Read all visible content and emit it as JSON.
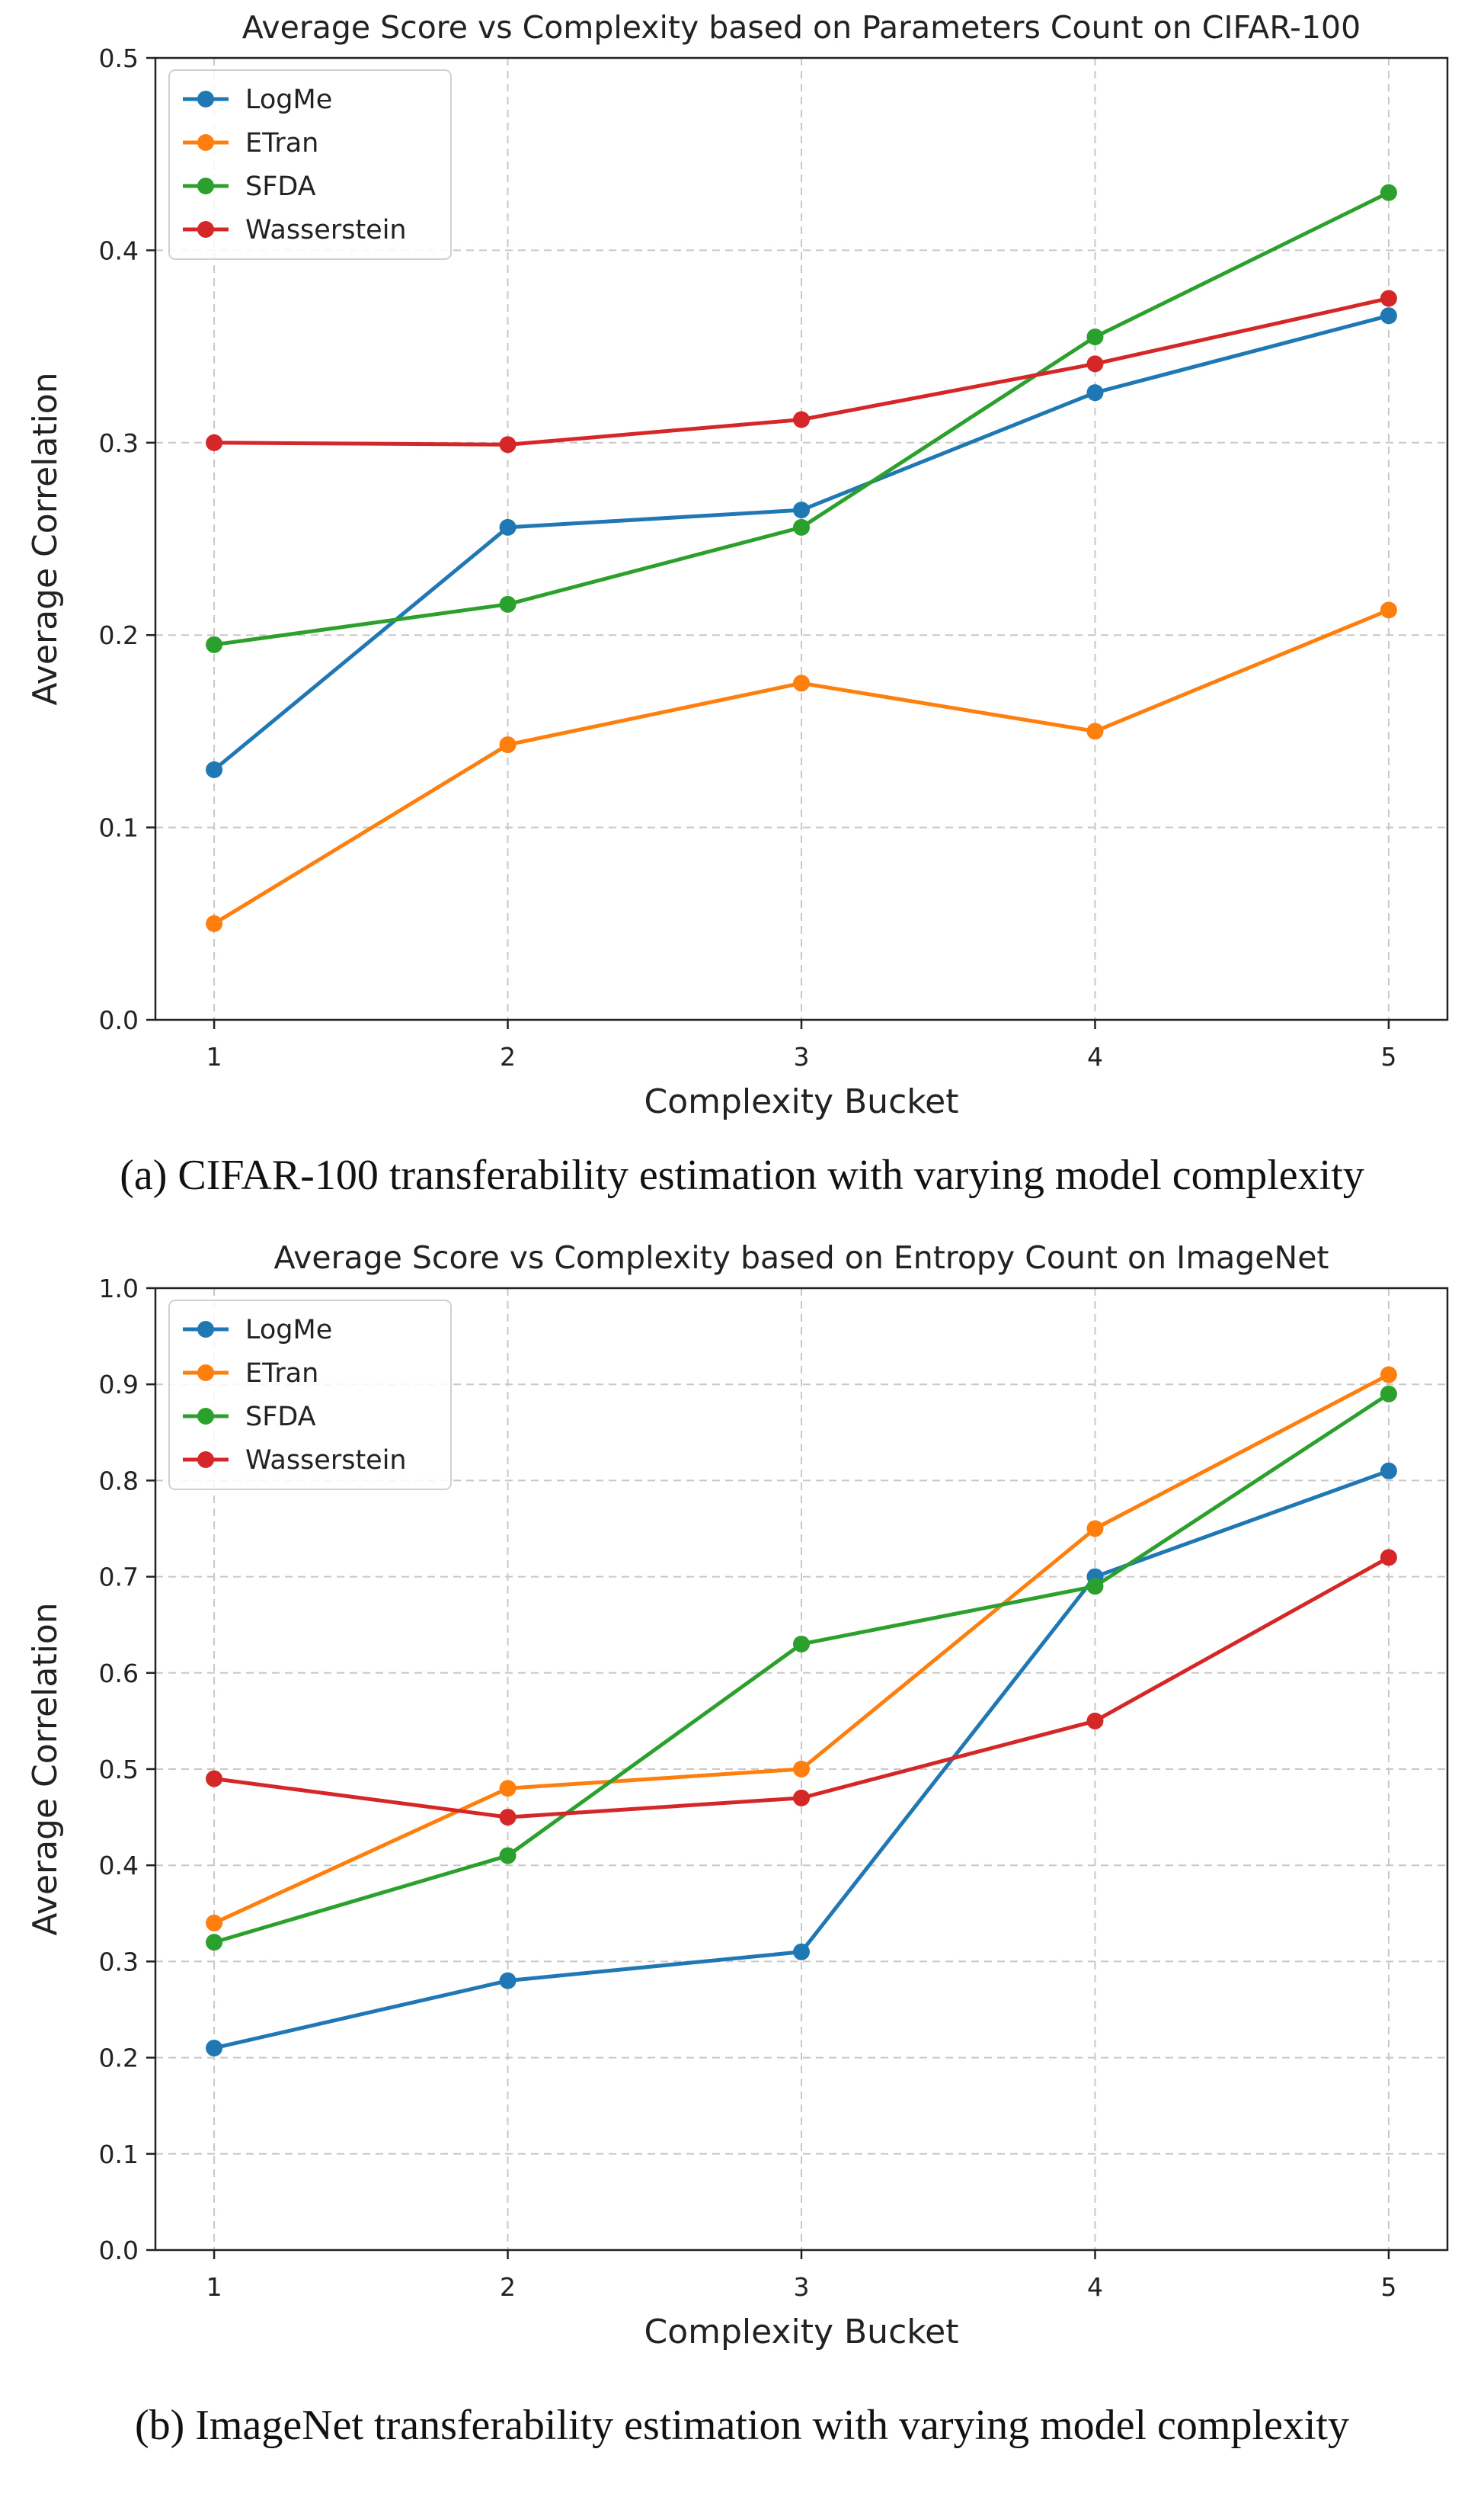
{
  "chart_data": [
    {
      "type": "line",
      "title": "Average Score vs Complexity based on Parameters Count on CIFAR-100",
      "xlabel": "Complexity Bucket",
      "ylabel": "Average Correlation",
      "x": [
        1,
        2,
        3,
        4,
        5
      ],
      "xticks": [
        "1",
        "2",
        "3",
        "4",
        "5"
      ],
      "xlim": [
        0.8,
        5.2
      ],
      "ylim": [
        0.0,
        0.5
      ],
      "yticks": [
        "0.0",
        "0.1",
        "0.2",
        "0.3",
        "0.4",
        "0.5"
      ],
      "grid": true,
      "legend_position": "top-left",
      "series": [
        {
          "name": "LogMe",
          "color": "#1f77b4",
          "values": [
            0.13,
            0.256,
            0.265,
            0.326,
            0.366
          ]
        },
        {
          "name": "ETran",
          "color": "#ff7f0e",
          "values": [
            0.05,
            0.143,
            0.175,
            0.15,
            0.213
          ]
        },
        {
          "name": "SFDA",
          "color": "#2ca02c",
          "values": [
            0.195,
            0.216,
            0.256,
            0.355,
            0.43
          ]
        },
        {
          "name": "Wasserstein",
          "color": "#d62728",
          "values": [
            0.3,
            0.299,
            0.312,
            0.341,
            0.375
          ]
        }
      ],
      "caption": "(a) CIFAR-100 transferability estimation with varying model complexity"
    },
    {
      "type": "line",
      "title": "Average Score vs Complexity based on Entropy Count on ImageNet",
      "xlabel": "Complexity Bucket",
      "ylabel": "Average Correlation",
      "x": [
        1,
        2,
        3,
        4,
        5
      ],
      "xticks": [
        "1",
        "2",
        "3",
        "4",
        "5"
      ],
      "xlim": [
        0.8,
        5.2
      ],
      "ylim": [
        0.0,
        1.0
      ],
      "yticks": [
        "0.0",
        "0.1",
        "0.2",
        "0.3",
        "0.4",
        "0.5",
        "0.6",
        "0.7",
        "0.8",
        "0.9",
        "1.0"
      ],
      "grid": true,
      "legend_position": "top-left",
      "series": [
        {
          "name": "LogMe",
          "color": "#1f77b4",
          "values": [
            0.21,
            0.28,
            0.31,
            0.7,
            0.81
          ]
        },
        {
          "name": "ETran",
          "color": "#ff7f0e",
          "values": [
            0.34,
            0.48,
            0.5,
            0.75,
            0.91
          ]
        },
        {
          "name": "SFDA",
          "color": "#2ca02c",
          "values": [
            0.32,
            0.41,
            0.63,
            0.69,
            0.89
          ]
        },
        {
          "name": "Wasserstein",
          "color": "#d62728",
          "values": [
            0.49,
            0.45,
            0.47,
            0.55,
            0.72
          ]
        }
      ],
      "caption": "(b) ImageNet transferability estimation with varying model complexity"
    }
  ]
}
